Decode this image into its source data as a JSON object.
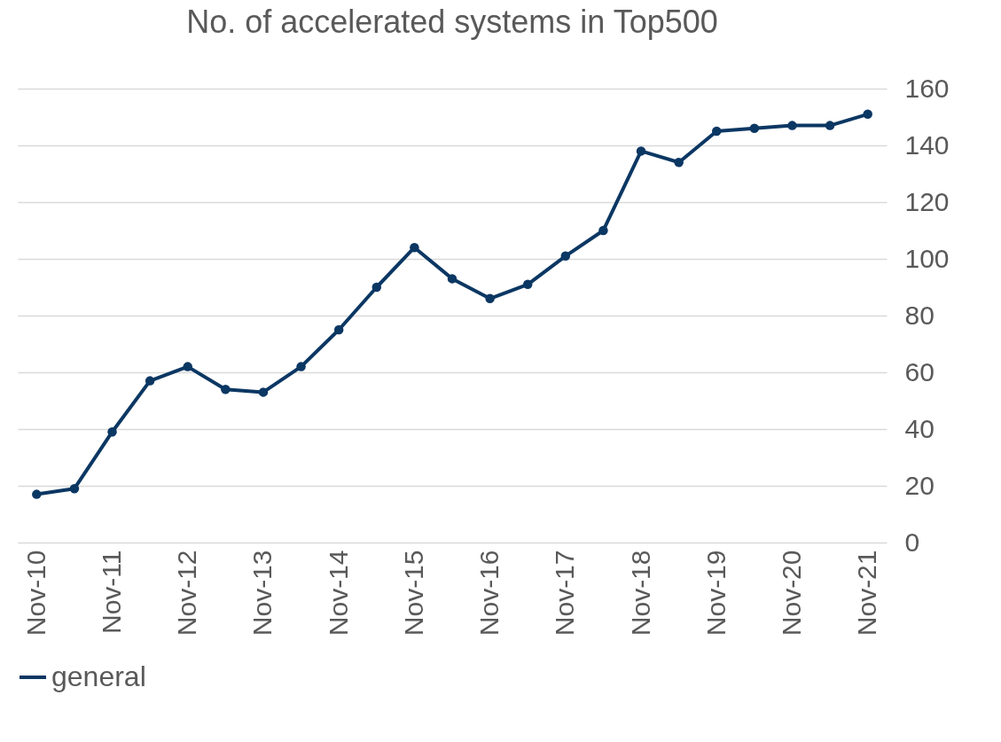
{
  "chart_data": {
    "type": "line",
    "title": "No. of accelerated systems in Top500",
    "categories": [
      "Nov-10",
      null,
      "Nov-11",
      null,
      "Nov-12",
      null,
      "Nov-13",
      null,
      "Nov-14",
      null,
      "Nov-15",
      null,
      "Nov-16",
      null,
      "Nov-17",
      null,
      "Nov-18",
      null,
      "Nov-19",
      null,
      "Nov-20",
      null,
      "Nov-21"
    ],
    "series": [
      {
        "name": "general",
        "color": "#0b3763",
        "values": [
          17,
          19,
          39,
          57,
          62,
          54,
          53,
          62,
          75,
          90,
          104,
          93,
          86,
          91,
          101,
          110,
          138,
          134,
          145,
          146,
          147,
          147,
          151
        ]
      }
    ],
    "ylim": [
      0,
      160
    ],
    "yticks": [
      0,
      20,
      40,
      60,
      80,
      100,
      120,
      140,
      160
    ],
    "grid": "y",
    "legend": "bottom",
    "marker": "circle",
    "line_style": "solid"
  }
}
